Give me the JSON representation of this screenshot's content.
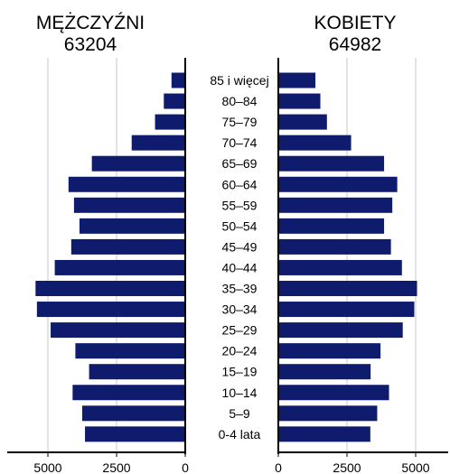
{
  "chart_data": {
    "type": "bar",
    "orientation": "horizontal",
    "layout": "population-pyramid",
    "categories": [
      "85 i więcej",
      "80–84",
      "75–79",
      "70–74",
      "65–69",
      "60–64",
      "55–59",
      "50–54",
      "45–49",
      "40–44",
      "35–39",
      "30–34",
      "25–29",
      "20–24",
      "15–19",
      "10–14",
      "5–9",
      "0-4 lata"
    ],
    "series": [
      {
        "name": "MĘŻCZYŹNI",
        "total": "63204",
        "values": [
          500,
          780,
          1100,
          1950,
          3400,
          4250,
          4050,
          3850,
          4150,
          4750,
          5450,
          5400,
          4900,
          4000,
          3500,
          4100,
          3750,
          3650
        ]
      },
      {
        "name": "KOBIETY",
        "total": "64982",
        "values": [
          1350,
          1530,
          1770,
          2650,
          3850,
          4330,
          4150,
          3850,
          4100,
          4500,
          5050,
          4950,
          4530,
          3720,
          3360,
          4030,
          3600,
          3350
        ]
      }
    ],
    "xticks": [
      0,
      2500,
      5000
    ],
    "xlim": [
      0,
      6500
    ],
    "bar_color": "#0f1c6e",
    "grid": true
  }
}
